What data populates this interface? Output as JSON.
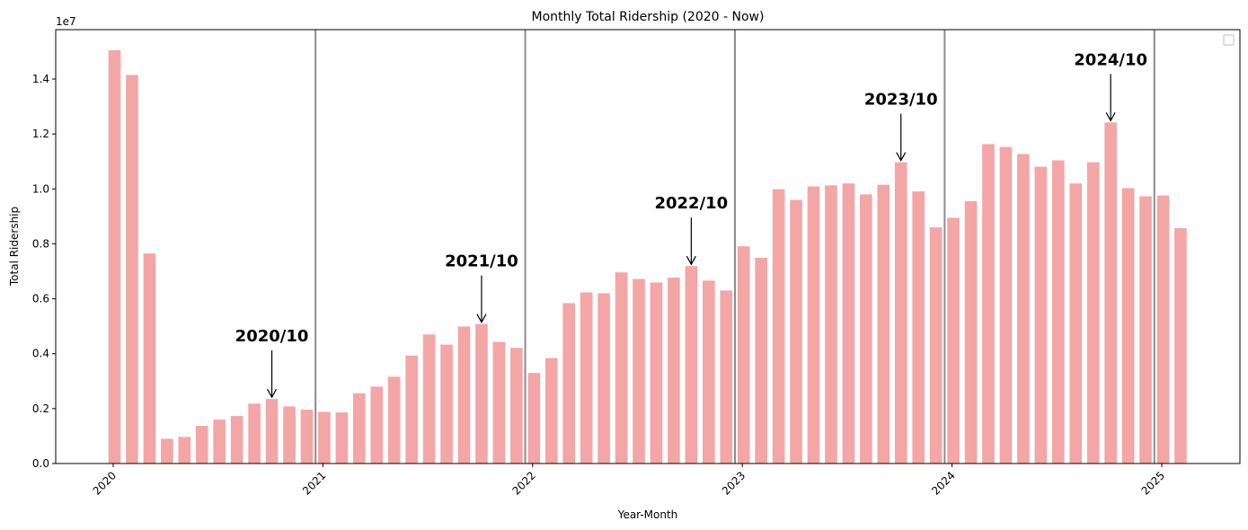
{
  "chart_data": {
    "type": "bar",
    "title": "Monthly Total Ridership (2020 - Now)",
    "xlabel": "Year-Month",
    "ylabel": "Total Ridership",
    "y_exponent_label": "1e7",
    "ylim": [
      0,
      15800000
    ],
    "y_ticks": [
      0,
      2000000,
      4000000,
      6000000,
      8000000,
      10000000,
      12000000,
      14000000
    ],
    "y_tick_labels": [
      "0.0",
      "0.2",
      "0.4",
      "0.6",
      "0.8",
      "1.0",
      "1.2",
      "1.4"
    ],
    "x_tick_labels": [
      "2020",
      "2021",
      "2022",
      "2023",
      "2024",
      "2025"
    ],
    "categories": [
      "2020-01",
      "2020-02",
      "2020-03",
      "2020-04",
      "2020-05",
      "2020-06",
      "2020-07",
      "2020-08",
      "2020-09",
      "2020-10",
      "2020-11",
      "2020-12",
      "2021-01",
      "2021-02",
      "2021-03",
      "2021-04",
      "2021-05",
      "2021-06",
      "2021-07",
      "2021-08",
      "2021-09",
      "2021-10",
      "2021-11",
      "2021-12",
      "2022-01",
      "2022-02",
      "2022-03",
      "2022-04",
      "2022-05",
      "2022-06",
      "2022-07",
      "2022-08",
      "2022-09",
      "2022-10",
      "2022-11",
      "2022-12",
      "2023-01",
      "2023-02",
      "2023-03",
      "2023-04",
      "2023-05",
      "2023-06",
      "2023-07",
      "2023-08",
      "2023-09",
      "2023-10",
      "2023-11",
      "2023-12",
      "2024-01",
      "2024-02",
      "2024-03",
      "2024-04",
      "2024-05",
      "2024-06",
      "2024-07",
      "2024-08",
      "2024-09",
      "2024-10",
      "2024-11",
      "2024-12",
      "2025-01",
      "2025-02"
    ],
    "values": [
      15050000,
      14150000,
      7650000,
      900000,
      970000,
      1370000,
      1600000,
      1730000,
      2180000,
      2350000,
      2080000,
      1960000,
      1880000,
      1860000,
      2560000,
      2800000,
      3160000,
      3930000,
      4700000,
      4330000,
      4990000,
      5080000,
      4430000,
      4210000,
      3300000,
      3840000,
      5840000,
      6230000,
      6200000,
      6960000,
      6720000,
      6590000,
      6770000,
      7190000,
      6660000,
      6300000,
      7910000,
      7490000,
      9990000,
      9600000,
      10090000,
      10130000,
      10200000,
      9800000,
      10150000,
      10970000,
      9910000,
      8600000,
      8950000,
      9550000,
      11630000,
      11530000,
      11270000,
      10810000,
      11040000,
      10200000,
      10970000,
      12420000,
      10030000,
      9730000,
      9760000,
      8570000
    ],
    "bar_color": "#f4a5a5",
    "year_separators": [
      "2020-12",
      "2021-12",
      "2022-12",
      "2023-12",
      "2024-12"
    ],
    "separator_color": "#8c8c8c",
    "annotations": [
      {
        "label": "2020/10",
        "target": "2020-10"
      },
      {
        "label": "2021/10",
        "target": "2021-10"
      },
      {
        "label": "2022/10",
        "target": "2022-10"
      },
      {
        "label": "2023/10",
        "target": "2023-10"
      },
      {
        "label": "2024/10",
        "target": "2024-10"
      }
    ],
    "legend": {
      "position": "top-right",
      "entries": []
    },
    "grid": false
  }
}
